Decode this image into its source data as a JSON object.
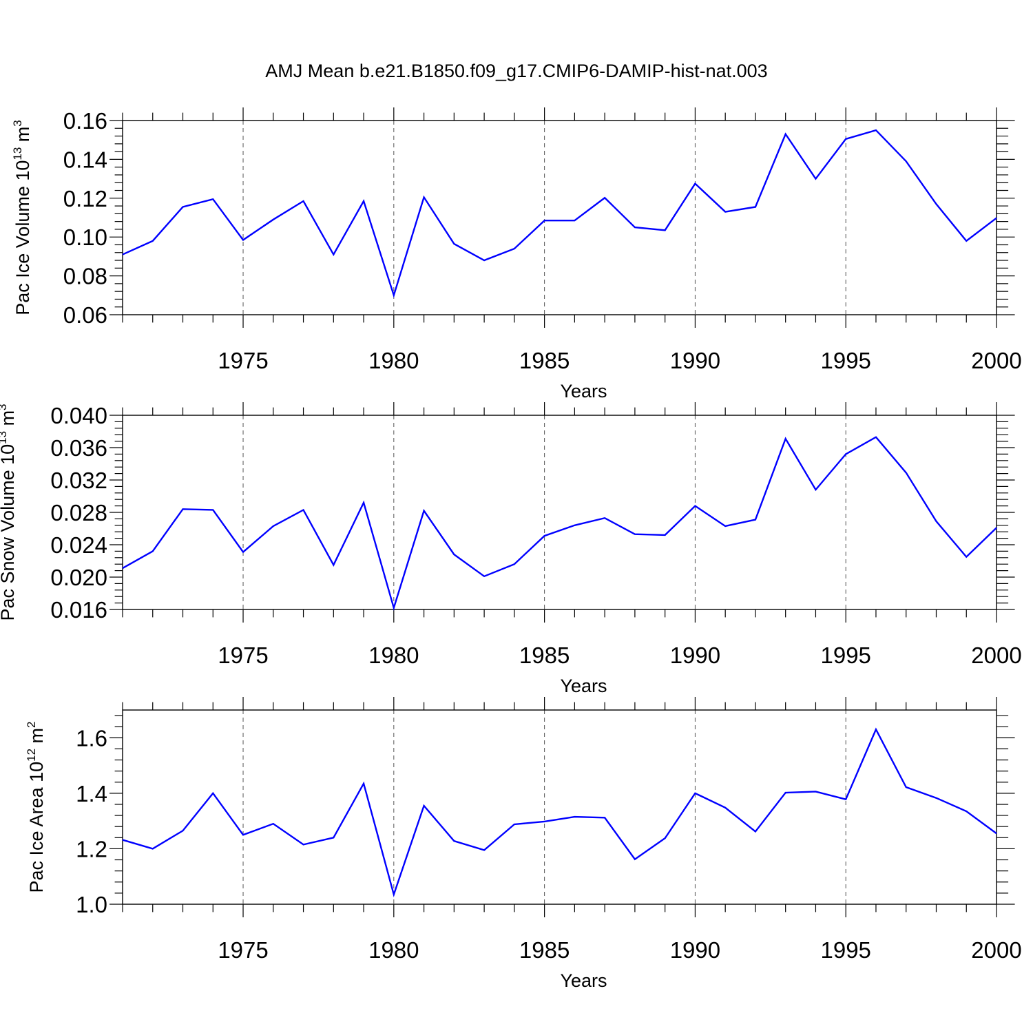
{
  "title": "AMJ Mean b.e21.B1850.f09_g17.CMIP6-DAMIP-hist-nat.003",
  "colors": {
    "line": "#0000ff",
    "grid": "#555555",
    "axes": "#000000"
  },
  "chart_data": [
    {
      "type": "line",
      "title": "AMJ Mean b.e21.B1850.f09_g17.CMIP6-DAMIP-hist-nat.003",
      "xlabel": "Years",
      "ylabel": {
        "text": "Pac Ice Volume 10",
        "exponent": "13",
        "unit": " m",
        "unit_exponent": "3"
      },
      "xlim": [
        1971,
        2000
      ],
      "ylim": [
        0.06,
        0.16
      ],
      "yticks": [
        "0.06",
        "0.08",
        "0.10",
        "0.12",
        "0.14",
        "0.16"
      ],
      "xticks": [
        "1975",
        "1980",
        "1985",
        "1990",
        "1995",
        "2000"
      ],
      "grid": "vertical-dashed",
      "x": [
        1971,
        1972,
        1973,
        1974,
        1975,
        1976,
        1977,
        1978,
        1979,
        1980,
        1981,
        1982,
        1983,
        1984,
        1985,
        1986,
        1987,
        1988,
        1989,
        1990,
        1991,
        1992,
        1993,
        1994,
        1995,
        1996,
        1997,
        1998,
        1999,
        2000
      ],
      "values": [
        0.091,
        0.098,
        0.1155,
        0.1195,
        0.0985,
        0.109,
        0.1185,
        0.091,
        0.1185,
        0.07,
        0.1205,
        0.0965,
        0.088,
        0.094,
        0.1085,
        0.1085,
        0.1202,
        0.105,
        0.1035,
        0.1275,
        0.113,
        0.1155,
        0.153,
        0.13,
        0.1505,
        0.155,
        0.139,
        0.117,
        0.098,
        0.1098
      ]
    },
    {
      "type": "line",
      "xlabel": "Years",
      "ylabel": {
        "text": "Pac Snow Volume 10",
        "exponent": "13",
        "unit": " m",
        "unit_exponent": "3"
      },
      "xlim": [
        1971,
        2000
      ],
      "ylim": [
        0.016,
        0.04
      ],
      "yticks": [
        "0.016",
        "0.020",
        "0.024",
        "0.028",
        "0.032",
        "0.036",
        "0.040"
      ],
      "xticks": [
        "1975",
        "1980",
        "1985",
        "1990",
        "1995",
        "2000"
      ],
      "grid": "vertical-dashed",
      "x": [
        1971,
        1972,
        1973,
        1974,
        1975,
        1976,
        1977,
        1978,
        1979,
        1980,
        1981,
        1982,
        1983,
        1984,
        1985,
        1986,
        1987,
        1988,
        1989,
        1990,
        1991,
        1992,
        1993,
        1994,
        1995,
        1996,
        1997,
        1998,
        1999,
        2000
      ],
      "values": [
        0.0211,
        0.0232,
        0.0284,
        0.0283,
        0.0231,
        0.0263,
        0.0283,
        0.0215,
        0.0292,
        0.0162,
        0.0282,
        0.0228,
        0.0201,
        0.0216,
        0.0251,
        0.0264,
        0.0273,
        0.0253,
        0.0252,
        0.0288,
        0.0263,
        0.0271,
        0.0371,
        0.0308,
        0.0352,
        0.0373,
        0.0329,
        0.0269,
        0.0225,
        0.0261
      ]
    },
    {
      "type": "line",
      "xlabel": "Years",
      "ylabel": {
        "text": "Pac Ice Area 10",
        "exponent": "12",
        "unit": " m",
        "unit_exponent": "2"
      },
      "xlim": [
        1971,
        2000
      ],
      "ylim": [
        1.0,
        1.7
      ],
      "yticks": [
        "1.0",
        "1.2",
        "1.4",
        "1.6"
      ],
      "xticks": [
        "1975",
        "1980",
        "1985",
        "1990",
        "1995",
        "2000"
      ],
      "grid": "vertical-dashed",
      "x": [
        1971,
        1972,
        1973,
        1974,
        1975,
        1976,
        1977,
        1978,
        1979,
        1980,
        1981,
        1982,
        1983,
        1984,
        1985,
        1986,
        1987,
        1988,
        1989,
        1990,
        1991,
        1992,
        1993,
        1994,
        1995,
        1996,
        1997,
        1998,
        1999,
        2000
      ],
      "values": [
        1.232,
        1.2,
        1.265,
        1.4,
        1.25,
        1.29,
        1.215,
        1.24,
        1.435,
        1.035,
        1.355,
        1.228,
        1.195,
        1.288,
        1.298,
        1.315,
        1.312,
        1.162,
        1.238,
        1.4,
        1.348,
        1.262,
        1.402,
        1.406,
        1.378,
        1.63,
        1.422,
        1.383,
        1.335,
        1.255
      ]
    }
  ]
}
